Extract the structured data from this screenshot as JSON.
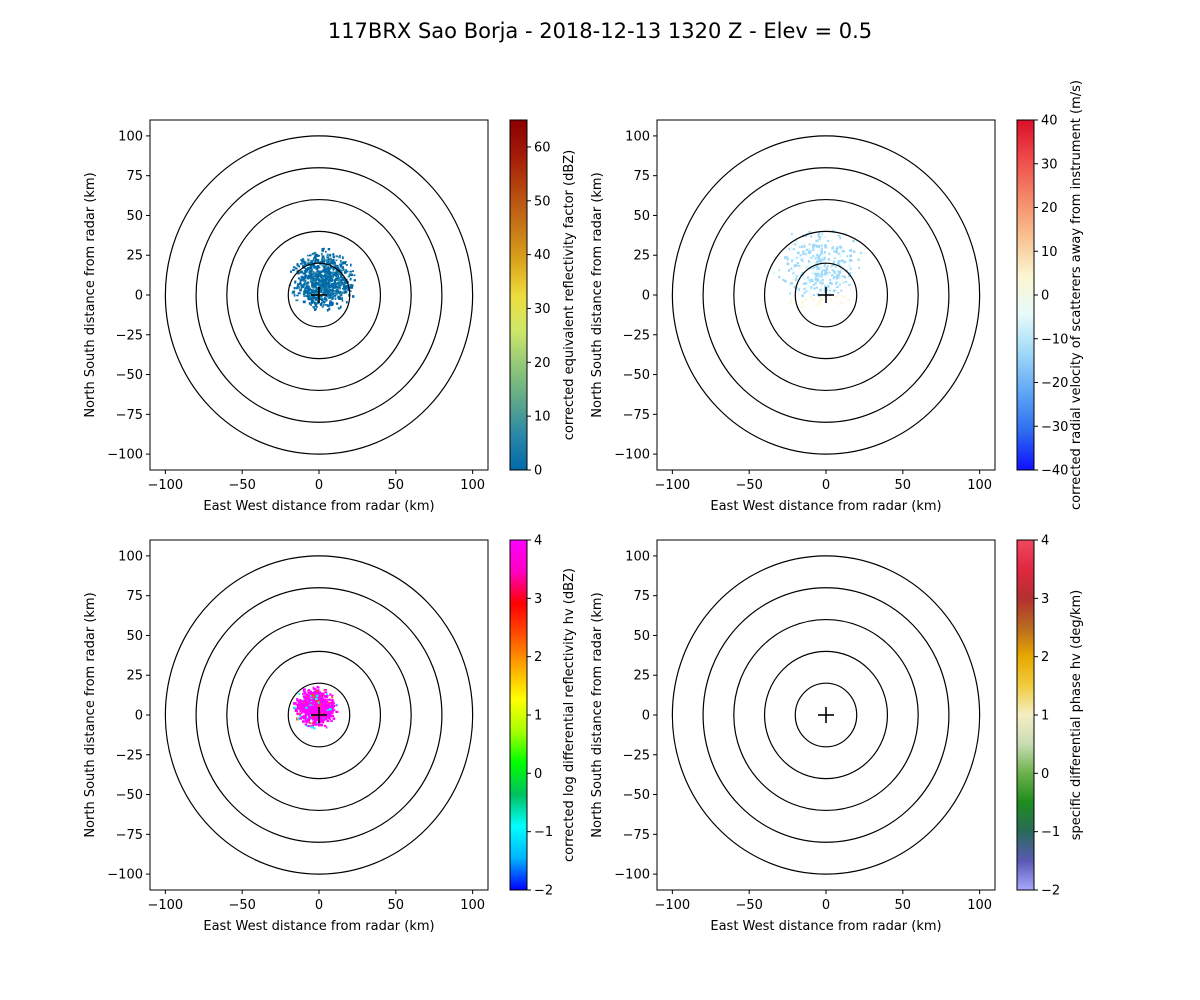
{
  "title": "117BRX Sao Borja - 2018-12-13 1320 Z -  Elev = 0.5",
  "chart_data": [
    {
      "type": "heatmap",
      "name": "reflectivity",
      "xlabel": "East West distance from radar (km)",
      "ylabel": "North South distance from radar (km)",
      "xlim": [
        -110,
        110
      ],
      "ylim": [
        -110,
        110
      ],
      "xticks": [
        "−100",
        "−50",
        "0",
        "50",
        "100"
      ],
      "xtick_values": [
        -100,
        -50,
        0,
        50,
        100
      ],
      "yticks": [
        "100",
        "75",
        "50",
        "25",
        "0",
        "−25",
        "−50",
        "−75",
        "−100"
      ],
      "ytick_values": [
        100,
        75,
        50,
        25,
        0,
        -25,
        -50,
        -75,
        -100
      ],
      "range_rings_km": [
        20,
        40,
        60,
        80,
        100
      ],
      "radar_center": [
        0,
        0
      ],
      "echo_blob": {
        "cx": 2,
        "cy": 10,
        "r": 18,
        "density": 0.85
      },
      "colorbar": {
        "label": "corrected equivalent reflectivity factor (dBZ)",
        "vmin": 0,
        "vmax": 65,
        "tick_values": [
          0,
          10,
          20,
          30,
          40,
          50,
          60
        ],
        "ticks": [
          "0",
          "10",
          "20",
          "30",
          "40",
          "50",
          "60"
        ],
        "colors": [
          "#0069a8",
          "#2a88a8",
          "#5fa98a",
          "#93c877",
          "#cfe86a",
          "#eedb3c",
          "#d9a21c",
          "#c57417",
          "#b5470f",
          "#a31a08",
          "#8b0000"
        ]
      }
    },
    {
      "type": "heatmap",
      "name": "velocity",
      "xlabel": "East West distance from radar (km)",
      "ylabel": "North South distance from radar (km)",
      "xlim": [
        -110,
        110
      ],
      "ylim": [
        -110,
        110
      ],
      "xticks": [
        "−100",
        "−50",
        "0",
        "50",
        "100"
      ],
      "xtick_values": [
        -100,
        -50,
        0,
        50,
        100
      ],
      "yticks": [
        "100",
        "75",
        "50",
        "25",
        "0",
        "−25",
        "−50",
        "−75",
        "−100"
      ],
      "ytick_values": [
        100,
        75,
        50,
        25,
        0,
        -25,
        -50,
        -75,
        -100
      ],
      "range_rings_km": [
        20,
        40,
        60,
        80,
        100
      ],
      "radar_center": [
        0,
        0
      ],
      "echo_blob": {
        "cx": -5,
        "cy": 18,
        "r": 25,
        "density": 0.45
      },
      "colorbar": {
        "label": "corrected radial velocity of scatterers away from instrument (m/s)",
        "vmin": -40,
        "vmax": 40,
        "tick_values": [
          -40,
          -30,
          -20,
          -10,
          0,
          10,
          20,
          30,
          40
        ],
        "ticks": [
          "−40",
          "−30",
          "−20",
          "−10",
          "0",
          "10",
          "20",
          "30",
          "40"
        ],
        "colors": [
          "#1010ff",
          "#2e6cf0",
          "#5fa6f5",
          "#9fd8f8",
          "#e6fbfb",
          "#fbf5d0",
          "#f8c190",
          "#f48868",
          "#ef4a4a",
          "#d9102a"
        ]
      }
    },
    {
      "type": "heatmap",
      "name": "differential_reflectivity",
      "xlabel": "East West distance from radar (km)",
      "ylabel": "North South distance from radar (km)",
      "xlim": [
        -110,
        110
      ],
      "ylim": [
        -110,
        110
      ],
      "xticks": [
        "−100",
        "−50",
        "0",
        "50",
        "100"
      ],
      "xtick_values": [
        -100,
        -50,
        0,
        50,
        100
      ],
      "yticks": [
        "100",
        "75",
        "50",
        "25",
        "0",
        "−25",
        "−50",
        "−75",
        "−100"
      ],
      "ytick_values": [
        100,
        75,
        50,
        25,
        0,
        -25,
        -50,
        -75,
        -100
      ],
      "range_rings_km": [
        20,
        40,
        60,
        80,
        100
      ],
      "radar_center": [
        0,
        0
      ],
      "echo_blob": {
        "cx": -3,
        "cy": 5,
        "r": 12,
        "density": 0.8
      },
      "colorbar": {
        "label": "corrected log differential reflectivity hv (dBZ)",
        "vmin": -2,
        "vmax": 4,
        "tick_values": [
          -2,
          -1,
          0,
          1,
          2,
          3,
          4
        ],
        "ticks": [
          "−2",
          "−1",
          "0",
          "1",
          "2",
          "3",
          "4"
        ],
        "colors": [
          "#0000ff",
          "#00b4ff",
          "#00ffff",
          "#00c060",
          "#00ff00",
          "#aaff00",
          "#ffff00",
          "#ffaa00",
          "#ff5000",
          "#ff0000",
          "#ff00c0",
          "#ff00ff"
        ]
      }
    },
    {
      "type": "heatmap",
      "name": "specific_differential_phase",
      "xlabel": "East West distance from radar (km)",
      "ylabel": "North South distance from radar (km)",
      "xlim": [
        -110,
        110
      ],
      "ylim": [
        -110,
        110
      ],
      "xticks": [
        "−100",
        "−50",
        "0",
        "50",
        "100"
      ],
      "xtick_values": [
        -100,
        -50,
        0,
        50,
        100
      ],
      "yticks": [
        "100",
        "75",
        "50",
        "25",
        "0",
        "−25",
        "−50",
        "−75",
        "−100"
      ],
      "ytick_values": [
        100,
        75,
        50,
        25,
        0,
        -25,
        -50,
        -75,
        -100
      ],
      "range_rings_km": [
        20,
        40,
        60,
        80,
        100
      ],
      "radar_center": [
        0,
        0
      ],
      "echo_blob": null,
      "colorbar": {
        "label": "specific differential phase hv (deg/km)",
        "vmin": -2,
        "vmax": 4,
        "tick_values": [
          -2,
          -1,
          0,
          1,
          2,
          3,
          4
        ],
        "ticks": [
          "−2",
          "−1",
          "0",
          "1",
          "2",
          "3",
          "4"
        ],
        "colors": [
          "#a8a8ff",
          "#5a5ab4",
          "#2a6a5a",
          "#1e8c1e",
          "#6cb04a",
          "#c9dcb4",
          "#f4eec4",
          "#f0cc40",
          "#e8a800",
          "#b86a20",
          "#b43030",
          "#e02840",
          "#f04860"
        ]
      }
    }
  ]
}
